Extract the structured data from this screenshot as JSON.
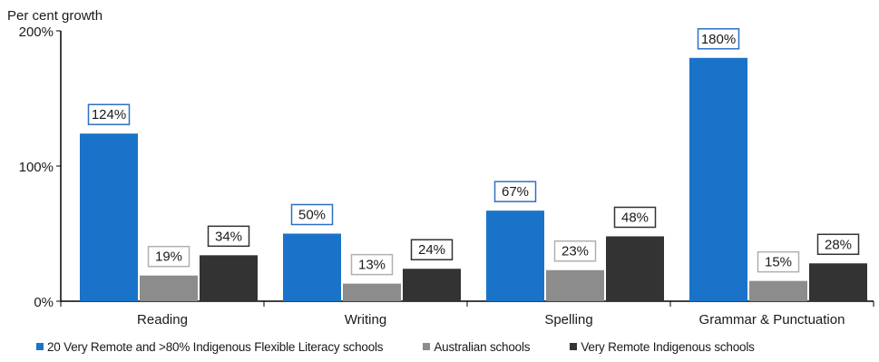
{
  "chart_data": {
    "type": "bar",
    "ylabel": "Per cent growth",
    "ylim": [
      0,
      200
    ],
    "yticks": [
      0,
      100,
      200
    ],
    "ytick_suffix": "%",
    "categories": [
      "Reading",
      "Writing",
      "Spelling",
      "Grammar & Punctuation"
    ],
    "series": [
      {
        "name": "20 Very Remote and >80% Indigenous Flexible Literacy schools",
        "color": "#1a73c8",
        "label_border": "#2f6fc4",
        "values": [
          124,
          50,
          67,
          180
        ]
      },
      {
        "name": "Australian schools",
        "color": "#8c8c8c",
        "label_border": "#b0b0b0",
        "values": [
          19,
          13,
          23,
          15
        ]
      },
      {
        "name": "Very Remote Indigenous schools",
        "color": "#333333",
        "label_border": "#333333",
        "values": [
          34,
          24,
          48,
          28
        ]
      }
    ],
    "data_labels": [
      [
        "124%",
        "50%",
        "67%",
        "180%"
      ],
      [
        "19%",
        "13%",
        "23%",
        "15%"
      ],
      [
        "34%",
        "24%",
        "48%",
        "28%"
      ]
    ],
    "grid": false,
    "legend_position": "bottom"
  }
}
